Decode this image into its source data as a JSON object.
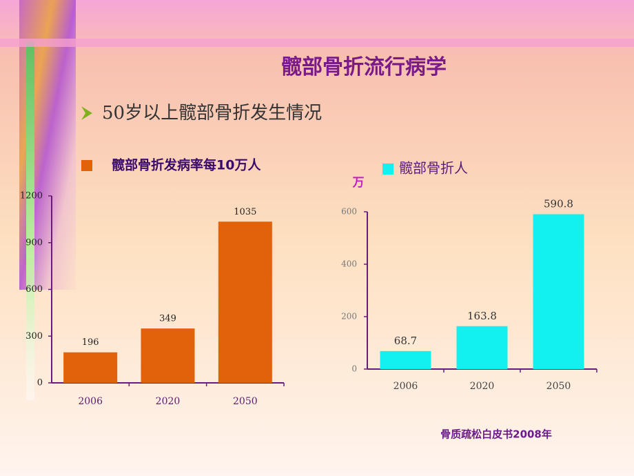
{
  "slide": {
    "title": "髋部骨折流行病学",
    "subtitle": "50岁以上髋部骨折发生情况",
    "source": "骨质疏松白皮书2008年"
  },
  "chart_data": [
    {
      "type": "bar",
      "categories": [
        "2006",
        "2020",
        "2050"
      ],
      "series": [
        {
          "name": "髋部骨折发病率每10万人",
          "color": "#e2620c",
          "values": [
            196,
            349,
            1035
          ]
        }
      ],
      "ylim": [
        0,
        1200
      ],
      "yticks": [
        0,
        300,
        600,
        900,
        1200
      ]
    },
    {
      "type": "bar",
      "y_label": "万",
      "categories": [
        "2006",
        "2020",
        "2050"
      ],
      "series": [
        {
          "name": "髋部骨折人",
          "color": "#12f0f0",
          "values": [
            68.7,
            163.8,
            590.8
          ]
        }
      ],
      "ylim": [
        0,
        600
      ],
      "yticks": [
        0,
        200,
        400,
        600
      ]
    }
  ]
}
